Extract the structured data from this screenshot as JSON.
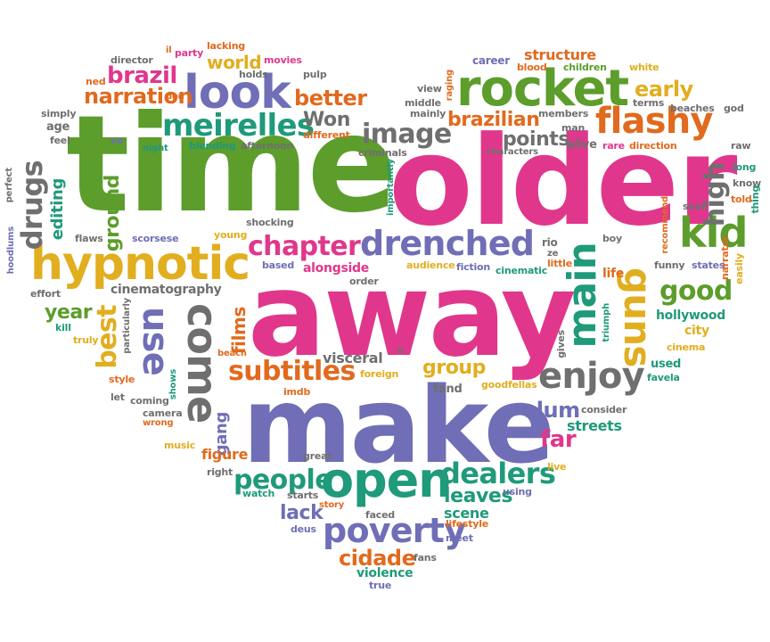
{
  "palette": {
    "green": "#5c9d2b",
    "pink": "#e0378c",
    "purple": "#6f6eb6",
    "teal": "#1f9a7a",
    "orange": "#e16a1e",
    "yellow": "#e1ae1f",
    "gray": "#6f6f6f"
  },
  "words": {
    "time": "time",
    "older": "older",
    "away": "away",
    "make": "make",
    "rocket": "rocket",
    "look": "look",
    "hypnotic": "hypnotic",
    "drenched": "drenched",
    "open": "open",
    "flashy": "flashy",
    "kid": "kid",
    "meirelles": "meirelles",
    "brazil": "brazil",
    "narration": "narration",
    "better": "better",
    "image": "image",
    "chapter": "chapter",
    "subtitles": "subtitles",
    "enjoy": "enjoy",
    "poverty": "poverty",
    "dealers": "dealers",
    "people": "people",
    "good": "good",
    "come": "come",
    "use": "use",
    "main": "main",
    "guns": "guns",
    "drugs": "drugs",
    "best": "best",
    "brazilian": "brazilian",
    "points": "points",
    "world": "world",
    "early": "early",
    "won": "Won",
    "year": "year",
    "slum": "slum",
    "far": "far",
    "leaves": "leaves",
    "lack": "lack",
    "cidade": "cidade",
    "group": "group",
    "high": "high",
    "films": "films",
    "editing": "editing",
    "ground": "ground",
    "hollywood": "hollywood",
    "city": "city",
    "gang": "gang",
    "figure": "figure",
    "cinematography": "cinematography",
    "visceral": "visceral",
    "alongside": "alongside",
    "scene": "scene",
    "streets": "streets",
    "structure": "structure",
    "career": "career",
    "blood": "blood",
    "children": "children",
    "white": "white",
    "terms": "terms",
    "beaches": "beaches",
    "god": "god",
    "raw": "raw",
    "long": "long",
    "know": "know",
    "told": "told",
    "thing": "thing",
    "seen": "seen",
    "recommend": "recommend",
    "boy": "boy",
    "funny": "funny",
    "states": "states",
    "narrator": "narrator",
    "easily": "easily",
    "cinema": "cinema",
    "used": "used",
    "favela": "favela",
    "gives": "gives",
    "triumph": "triumph",
    "little": "little",
    "life": "life",
    "rio": "rio",
    "ze": "ze",
    "fiction": "fiction",
    "cinematic": "cinematic",
    "audience": "audience",
    "goodfellas": "goodfellas",
    "consider": "consider",
    "live": "live",
    "using": "using",
    "lifestyle": "lifestyle",
    "meet": "meet",
    "fans": "fans",
    "violence": "violence",
    "true": "true",
    "faced": "faced",
    "story": "story",
    "deus": "deus",
    "great": "great",
    "starts": "starts",
    "watch": "watch",
    "right": "right",
    "music": "music",
    "camera": "camera",
    "wrong": "wrong",
    "coming": "coming",
    "let": "let",
    "style": "style",
    "shows": "shows",
    "particularly": "particularly",
    "truly": "truly",
    "kill": "kill",
    "effort": "effort",
    "hoodlums": "hoodlums",
    "perfect": "perfect",
    "flaws": "flaws",
    "scorsese": "scorsese",
    "young": "young",
    "shocking": "shocking",
    "simply": "simply",
    "age": "age",
    "feel": "feel",
    "ve": "ve",
    "night": "night",
    "blending": "blending",
    "afternoon": "afternoon",
    "different": "different",
    "criminals": "criminals",
    "importantly": "importantly",
    "based": "based",
    "order": "order",
    "foreign": "foreign",
    "imdb": "imdb",
    "tend": "tend",
    "il": "il",
    "beach": "beach",
    "director": "director",
    "party": "party",
    "lacking": "lacking",
    "movies": "movies",
    "holds": "holds",
    "pulp": "pulp",
    "ned": "ned",
    "don": "don",
    "view": "view",
    "raging": "raging",
    "middle": "middle",
    "mainly": "mainly",
    "members": "members",
    "man": "man",
    "alive": "alive",
    "rare": "rare",
    "direction": "direction",
    "characters": "characters"
  }
}
